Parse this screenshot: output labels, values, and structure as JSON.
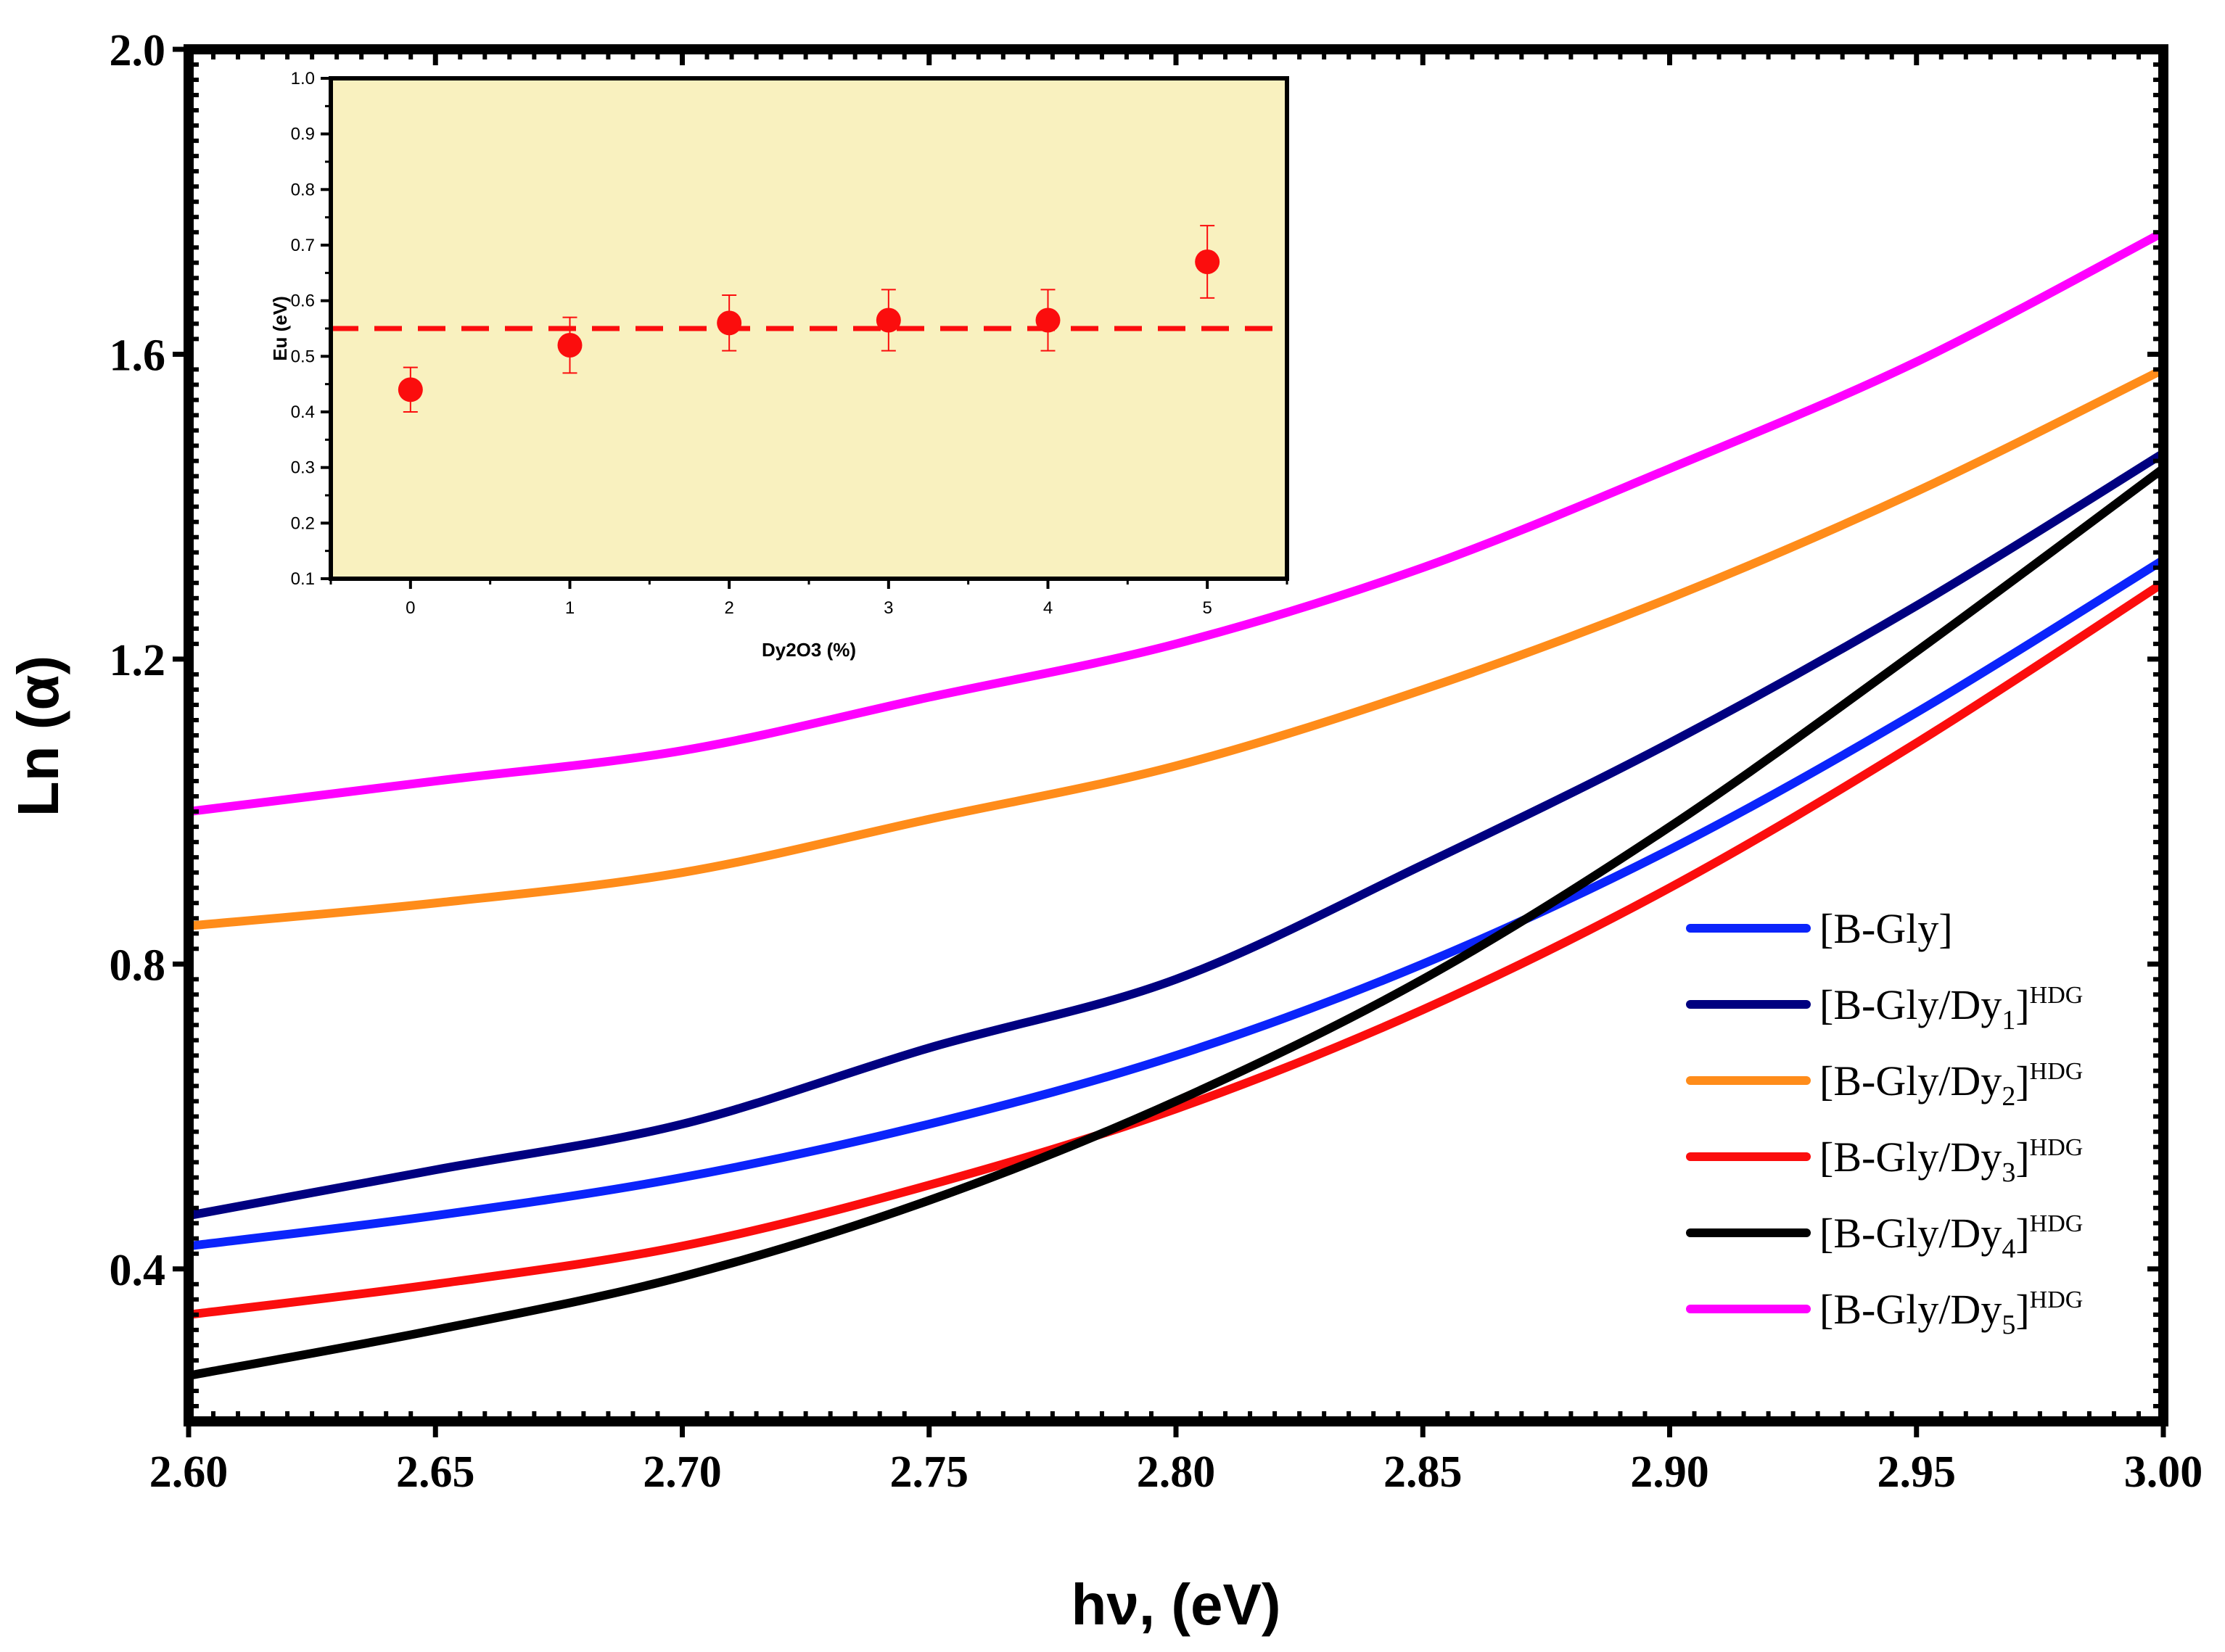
{
  "chart_data": [
    {
      "type": "line",
      "xlabel": "hν, (eV)",
      "ylabel": "Ln (α)",
      "xlim": [
        2.6,
        3.0
      ],
      "ylim": [
        0.2,
        2.0
      ],
      "x_ticks": [
        "2.60",
        "2.65",
        "2.70",
        "2.75",
        "2.80",
        "2.85",
        "2.90",
        "2.95",
        "3.00"
      ],
      "y_ticks": [
        "0.4",
        "0.8",
        "1.2",
        "1.6",
        "2.0"
      ],
      "legend_position": "bottom-right",
      "x": [
        2.6,
        2.65,
        2.7,
        2.75,
        2.8,
        2.85,
        2.9,
        2.95,
        3.0
      ],
      "series": [
        {
          "name": "[B-Gly]",
          "legend": {
            "base": "[B-Gly]",
            "sub": "",
            "close": "",
            "sup": ""
          },
          "color": "#0b24fb",
          "values": [
            0.43,
            0.47,
            0.52,
            0.59,
            0.68,
            0.8,
            0.95,
            1.13,
            1.33
          ]
        },
        {
          "name": "[B-Gly/Dy1]HDG",
          "legend": {
            "base": "[B-Gly/Dy",
            "sub": "1",
            "close": "]",
            "sup": "HDG"
          },
          "color": "#000080",
          "values": [
            0.47,
            0.53,
            0.59,
            0.69,
            0.78,
            0.93,
            1.09,
            1.27,
            1.47
          ]
        },
        {
          "name": "[B-Gly/Dy2]HDG",
          "legend": {
            "base": "[B-Gly/Dy",
            "sub": "2",
            "close": "]",
            "sup": "HDG"
          },
          "color": "#ff8c1a",
          "values": [
            0.85,
            0.88,
            0.92,
            0.99,
            1.06,
            1.16,
            1.28,
            1.42,
            1.58
          ]
        },
        {
          "name": "[B-Gly/Dy3]HDG",
          "legend": {
            "base": "[B-Gly/Dy",
            "sub": "3",
            "close": "]",
            "sup": "HDG"
          },
          "color": "#fb0d0d",
          "values": [
            0.34,
            0.38,
            0.43,
            0.51,
            0.61,
            0.74,
            0.9,
            1.09,
            1.3
          ]
        },
        {
          "name": "[B-Gly/Dy4]HDG",
          "legend": {
            "base": "[B-Gly/Dy",
            "sub": "4",
            "close": "]",
            "sup": "HDG"
          },
          "color": "#000000",
          "values": [
            0.26,
            0.32,
            0.39,
            0.49,
            0.62,
            0.78,
            0.98,
            1.21,
            1.45
          ]
        },
        {
          "name": "[B-Gly/Dy5]HDG",
          "legend": {
            "base": "[B-Gly/Dy",
            "sub": "5",
            "close": "]",
            "sup": "HDG"
          },
          "color": "#ff00ff",
          "values": [
            1.0,
            1.04,
            1.08,
            1.15,
            1.22,
            1.32,
            1.45,
            1.59,
            1.76
          ]
        }
      ]
    },
    {
      "type": "scatter",
      "xlabel": "Dy2O3 (%)",
      "ylabel": "Eu (eV)",
      "xlim": [
        -0.5,
        5.5
      ],
      "ylim": [
        0.1,
        1.0
      ],
      "x_ticks": [
        "0",
        "1",
        "2",
        "3",
        "4",
        "5"
      ],
      "y_ticks": [
        "0.1",
        "0.2",
        "0.3",
        "0.4",
        "0.5",
        "0.6",
        "0.7",
        "0.8",
        "0.9",
        "1.0"
      ],
      "background": "#f9f1bf",
      "marker_color": "#fb0d0d",
      "x": [
        0,
        1,
        2,
        3,
        4,
        5
      ],
      "values": [
        0.44,
        0.52,
        0.56,
        0.565,
        0.565,
        0.67
      ],
      "errors": [
        0.04,
        0.05,
        0.05,
        0.055,
        0.055,
        0.065
      ],
      "reference_line": {
        "y": 0.55,
        "style": "dashed",
        "color": "#fb0d0d"
      }
    }
  ]
}
